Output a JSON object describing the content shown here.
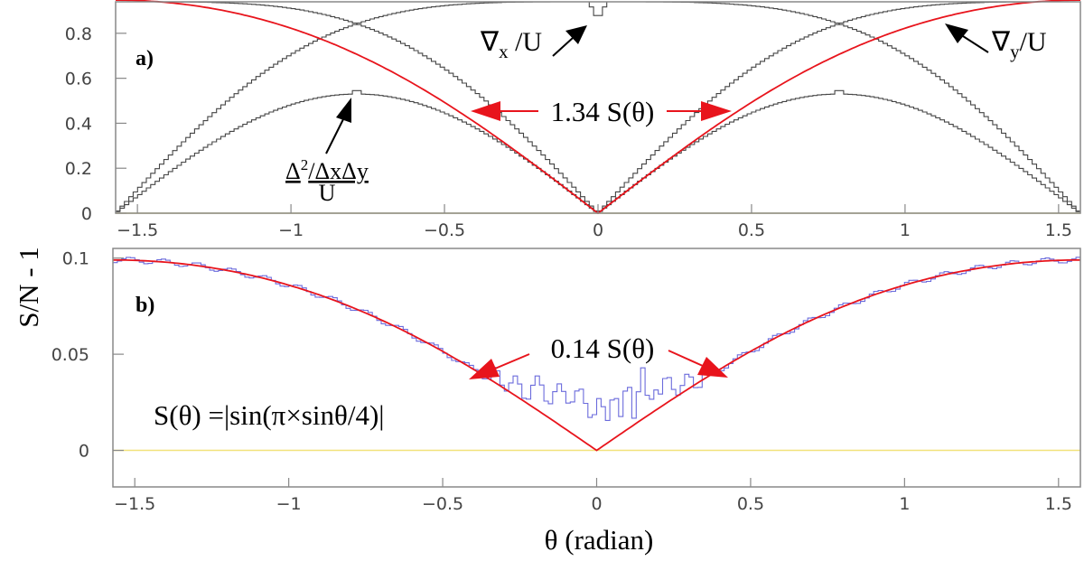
{
  "figure": {
    "ylabel": "S/N - 1",
    "xlabel": "θ (radian)"
  },
  "chart_data": [
    {
      "type": "line",
      "panel_label": "a)",
      "xlim": [
        -1.571,
        1.571
      ],
      "ylim": [
        0,
        0.94
      ],
      "x_ticks": [
        -1.5,
        -1,
        -0.5,
        0,
        0.5,
        1,
        1.5
      ],
      "x_tick_labels": [
        "−1.5",
        "−1",
        "−0.5",
        "0",
        "0.5",
        "1",
        "1.5"
      ],
      "y_ticks": [
        0,
        0.2,
        0.4,
        0.6,
        0.8
      ],
      "y_tick_labels": [
        "0",
        "0.2",
        "0.4",
        "0.6",
        "0.8"
      ],
      "grid": false,
      "annotations": {
        "gx": {
          "sym": "∇",
          "sub": "x",
          "rest": " /U"
        },
        "gy": {
          "sym": "∇",
          "sub": "y",
          "rest": "/U"
        },
        "mixed_num": {
          "delta": "Δ",
          "sup": "2",
          "rest": "/ΔxΔy"
        },
        "mixed_den": "U",
        "fit": "1.34 S(θ)"
      },
      "series": [
        {
          "id": "grad-x-over-U",
          "kind": "histogram",
          "color": "#444444",
          "shape": "gx",
          "scale": 0.94
        },
        {
          "id": "grad-y-over-U",
          "kind": "histogram",
          "color": "#444444",
          "shape": "gy",
          "scale": 0.94
        },
        {
          "id": "mixed-over-U",
          "kind": "histogram",
          "color": "#444444",
          "shape": "mixed",
          "scale": 0.53
        },
        {
          "id": "fit",
          "kind": "curve",
          "color": "#e8141c",
          "shape": "S",
          "scale": 1.34
        }
      ],
      "points": {
        "x": [
          -1.571,
          -1.5,
          -1.25,
          -1.0,
          -0.785,
          -0.5,
          -0.25,
          0,
          0.25,
          0.5,
          0.785,
          1.0,
          1.25,
          1.5,
          1.571
        ],
        "grad_x_over_U": [
          0.0,
          0.07,
          0.33,
          0.57,
          0.71,
          0.82,
          0.89,
          0.84,
          0.89,
          0.82,
          0.71,
          0.57,
          0.33,
          0.07,
          0.0
        ],
        "grad_y_over_U": [
          0.94,
          0.94,
          0.9,
          0.81,
          0.71,
          0.49,
          0.25,
          0.0,
          0.25,
          0.49,
          0.71,
          0.81,
          0.9,
          0.94,
          0.94
        ],
        "mixed_over_U": [
          0.0,
          0.06,
          0.3,
          0.48,
          0.53,
          0.45,
          0.24,
          0.0,
          0.24,
          0.45,
          0.53,
          0.48,
          0.3,
          0.06,
          0.0
        ]
      }
    },
    {
      "type": "line",
      "panel_label": "b)",
      "xlim": [
        -1.571,
        1.571
      ],
      "ylim": [
        -0.019,
        0.105
      ],
      "x_ticks": [
        -1.5,
        -1,
        -0.5,
        0,
        0.5,
        1,
        1.5
      ],
      "x_tick_labels": [
        "−1.5",
        "−1",
        "−0.5",
        "0",
        "0.5",
        "1",
        "1.5"
      ],
      "y_ticks": [
        0,
        0.05,
        0.1
      ],
      "y_tick_labels": [
        "0",
        "0.05",
        "0.1"
      ],
      "grid": false,
      "annotations": {
        "fit": "0.14 S(θ)",
        "formula": "S(θ) =|sin(π×sinθ/4)|"
      },
      "series": [
        {
          "id": "residual",
          "kind": "histogram",
          "color": "#6b6bdc",
          "shape": "resid",
          "scale": 0.14
        },
        {
          "id": "fit",
          "kind": "curve",
          "color": "#e8141c",
          "shape": "S",
          "scale": 0.14
        }
      ],
      "points": {
        "x": [
          -1.571,
          -1.5,
          -1.0,
          -0.5,
          -0.25,
          -0.1,
          -0.02,
          0,
          0.02,
          0.1,
          0.25,
          0.5,
          1.0,
          1.5,
          1.571
        ],
        "residual": [
          0.099,
          0.099,
          0.085,
          0.049,
          0.027,
          0.02,
          0.03,
          0.047,
          0.025,
          0.005,
          0.022,
          0.047,
          0.085,
          0.099,
          0.099
        ]
      }
    }
  ]
}
